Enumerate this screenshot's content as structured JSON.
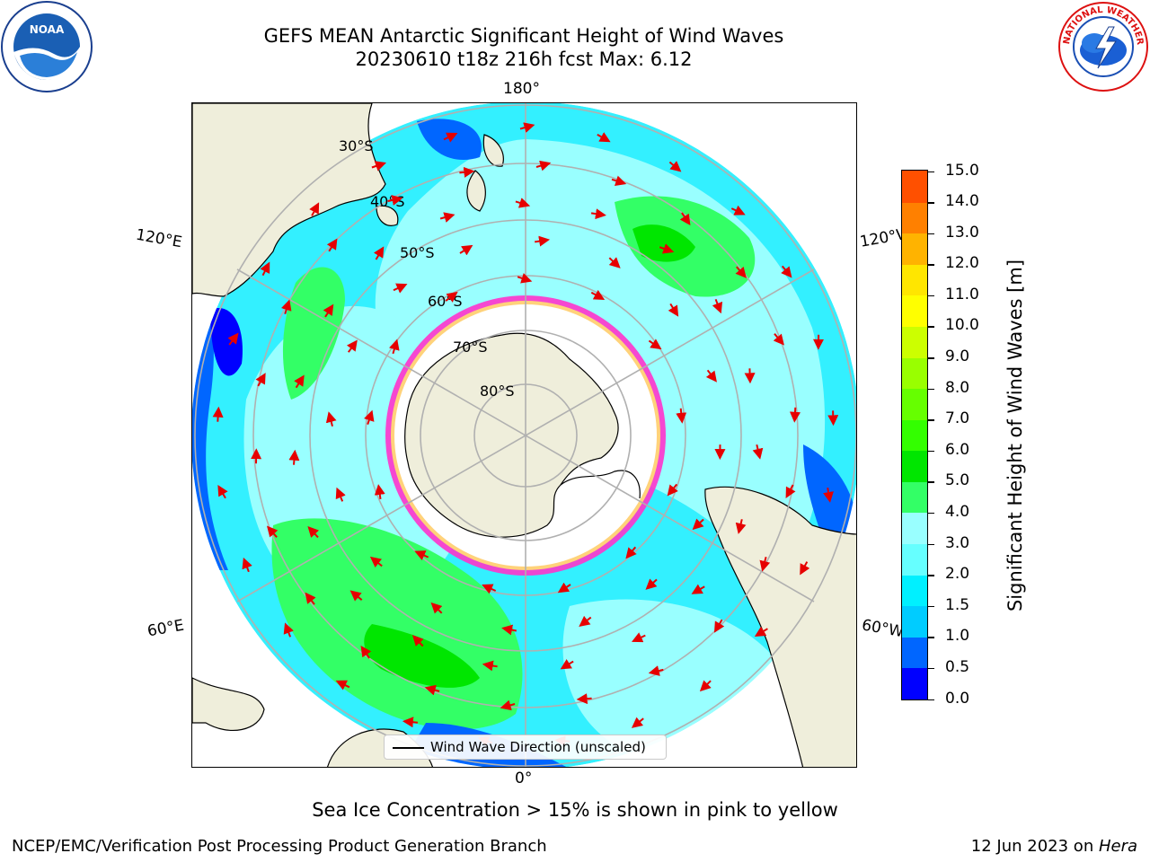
{
  "title": {
    "line1": "GEFS MEAN Antarctic Significant Height of Wind Waves",
    "line2": "20230610 t18z 216h fcst   Max: 6.12"
  },
  "map": {
    "projection": "south polar stereographic",
    "meridian_labels": [
      "180°",
      "120°E",
      "120°W",
      "60°E",
      "60°W",
      "0°"
    ],
    "latitude_labels": [
      "30°S",
      "40°S",
      "50°S",
      "60°S",
      "70°S",
      "80°S"
    ],
    "legend_label": "Wind Wave Direction (unscaled)",
    "colors": {
      "land": "#efeedb",
      "ice": "#ffffff",
      "arrow": "#e60000",
      "grid": "#b0b0b0",
      "ice_edge": "#ff33cc"
    }
  },
  "colorbar": {
    "label": "Significant Height of Wind Waves [m]",
    "ticks": [
      "15.0",
      "14.0",
      "13.0",
      "12.0",
      "11.0",
      "10.0",
      "9.0",
      "8.0",
      "7.0",
      "6.0",
      "5.0",
      "4.0",
      "3.0",
      "2.0",
      "1.5",
      "1.0",
      "0.5",
      "0.0"
    ],
    "colors": [
      "#0000ff",
      "#0066ff",
      "#00ccff",
      "#00f0ff",
      "#66ffff",
      "#99ffff",
      "#33ff66",
      "#00e600",
      "#33ff00",
      "#66ff00",
      "#99ff00",
      "#ccff00",
      "#ffff00",
      "#ffe600",
      "#ffb300",
      "#ff8000",
      "#ff5000",
      "#ff2000",
      "#ff0000"
    ]
  },
  "notes": {
    "ice_note": "Sea Ice Concentration > 15% is shown in pink to yellow",
    "footer_left": "NCEP/EMC/Verification Post Processing Product Generation Branch",
    "footer_date": "12 Jun 2023 on ",
    "footer_host": "Hera"
  },
  "logos": {
    "left": "NOAA",
    "right_text": "NATIONAL WEATHER SERVICE"
  }
}
